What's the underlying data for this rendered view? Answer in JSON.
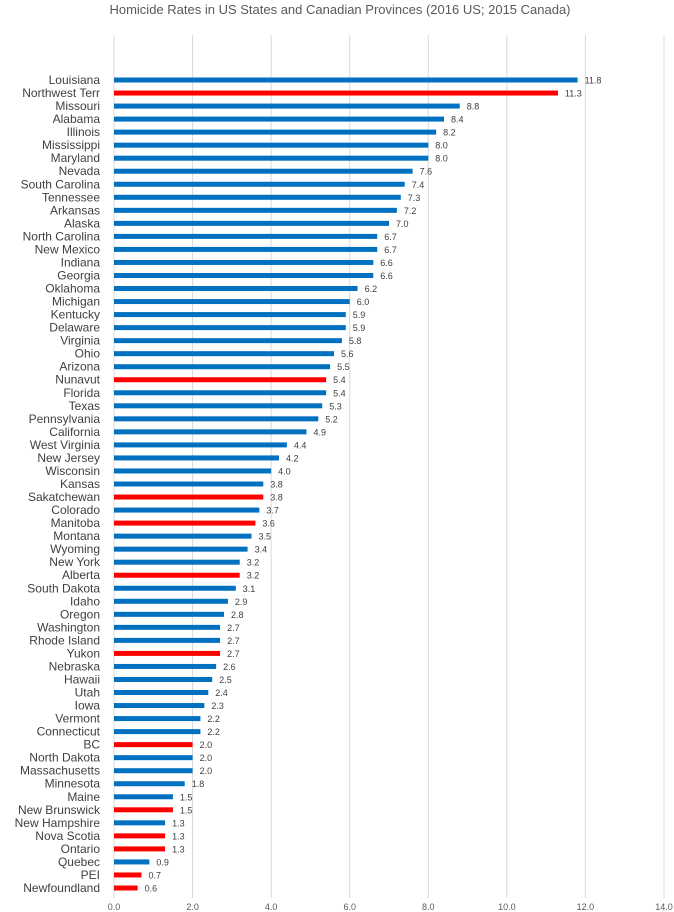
{
  "chart_data": {
    "type": "bar",
    "orientation": "horizontal",
    "title": "Homicide Rates in US States and Canadian Provinces (2016 US; 2015 Canada)",
    "xlabel": "",
    "ylabel": "",
    "xlim": [
      0,
      14
    ],
    "xticks": [
      "0.0",
      "2.0",
      "4.0",
      "6.0",
      "8.0",
      "10.0",
      "12.0",
      "14.0"
    ],
    "grid": true,
    "colors": {
      "US": "#0070C0",
      "Canada": "#FF0000"
    },
    "categories": [
      "Louisiana",
      "Northwest Terr",
      "Missouri",
      "Alabama",
      "Illinois",
      "Mississippi",
      "Maryland",
      "Nevada",
      "South Carolina",
      "Tennessee",
      "Arkansas",
      "Alaska",
      "North Carolina",
      "New Mexico",
      "Indiana",
      "Georgia",
      "Oklahoma",
      "Michigan",
      "Kentucky",
      "Delaware",
      "Virginia",
      "Ohio",
      "Arizona",
      "Nunavut",
      "Florida",
      "Texas",
      "Pennsylvania",
      "California",
      "West Virginia",
      "New Jersey",
      "Wisconsin",
      "Kansas",
      "Sakatchewan",
      "Colorado",
      "Manitoba",
      "Montana",
      "Wyoming",
      "New York",
      "Alberta",
      "South Dakota",
      "Idaho",
      "Oregon",
      "Washington",
      "Rhode Island",
      "Yukon",
      "Nebraska",
      "Hawaii",
      "Utah",
      "Iowa",
      "Vermont",
      "Connecticut",
      "BC",
      "North Dakota",
      "Massachusetts",
      "Minnesota",
      "Maine",
      "New Brunswick",
      "New Hampshire",
      "Nova Scotia",
      "Ontario",
      "Quebec",
      "PEI",
      "Newfoundland"
    ],
    "values": [
      11.8,
      11.3,
      8.8,
      8.4,
      8.2,
      8.0,
      8.0,
      7.6,
      7.4,
      7.3,
      7.2,
      7.0,
      6.7,
      6.7,
      6.6,
      6.6,
      6.2,
      6.0,
      5.9,
      5.9,
      5.8,
      5.6,
      5.5,
      5.4,
      5.4,
      5.3,
      5.2,
      4.9,
      4.4,
      4.2,
      4.0,
      3.8,
      3.8,
      3.7,
      3.6,
      3.5,
      3.4,
      3.2,
      3.2,
      3.1,
      2.9,
      2.8,
      2.7,
      2.7,
      2.7,
      2.6,
      2.5,
      2.4,
      2.3,
      2.2,
      2.2,
      2.0,
      2.0,
      2.0,
      1.8,
      1.5,
      1.5,
      1.3,
      1.3,
      1.3,
      0.9,
      0.7,
      0.6
    ],
    "labels": [
      "11.8",
      "11.3",
      "8.8",
      "8.4",
      "8.2",
      "8.0",
      "8.0",
      "7.6",
      "7.4",
      "7.3",
      "7.2",
      "7.0",
      "6.7",
      "6.7",
      "6.6",
      "6.6",
      "6.2",
      "6.0",
      "5.9",
      "5.9",
      "5.8",
      "5.6",
      "5.5",
      "5.4",
      "5.4",
      "5.3",
      "5.2",
      "4.9",
      "4.4",
      "4.2",
      "4.0",
      "3.8",
      "3.8",
      "3.7",
      "3.6",
      "3.5",
      "3.4",
      "3.2",
      "3.2",
      "3.1",
      "2.9",
      "2.8",
      "2.7",
      "2.7",
      "2.7",
      "2.6",
      "2.5",
      "2.4",
      "2.3",
      "2.2",
      "2.2",
      "2.0",
      "2.0",
      "2.0",
      "1.8",
      "1.5",
      "1.5",
      "1.3",
      "1.3",
      "1.3",
      "0.9",
      "0.7",
      "0.6"
    ],
    "country": [
      "US",
      "Canada",
      "US",
      "US",
      "US",
      "US",
      "US",
      "US",
      "US",
      "US",
      "US",
      "US",
      "US",
      "US",
      "US",
      "US",
      "US",
      "US",
      "US",
      "US",
      "US",
      "US",
      "US",
      "Canada",
      "US",
      "US",
      "US",
      "US",
      "US",
      "US",
      "US",
      "US",
      "Canada",
      "US",
      "Canada",
      "US",
      "US",
      "US",
      "Canada",
      "US",
      "US",
      "US",
      "US",
      "US",
      "Canada",
      "US",
      "US",
      "US",
      "US",
      "US",
      "US",
      "Canada",
      "US",
      "US",
      "US",
      "US",
      "Canada",
      "US",
      "Canada",
      "Canada",
      "US",
      "Canada",
      "Canada"
    ]
  }
}
